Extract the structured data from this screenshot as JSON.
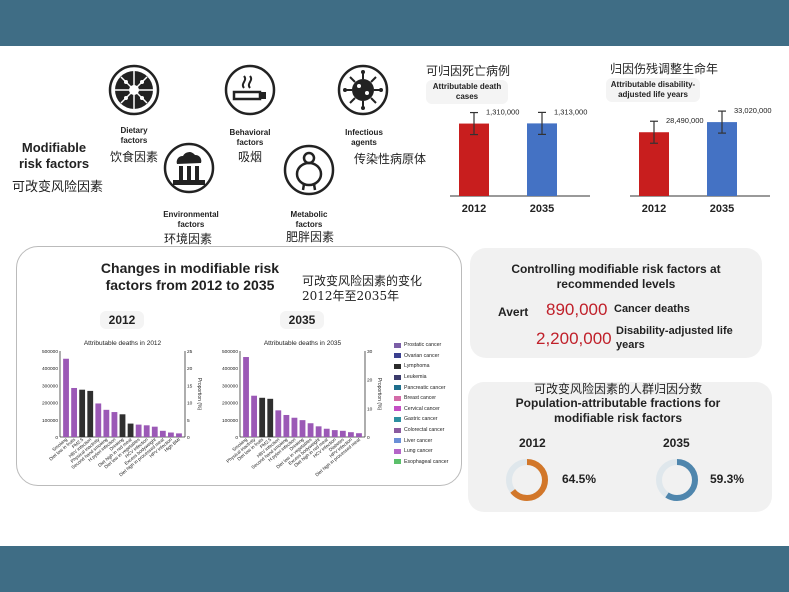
{
  "rf": {
    "title_en": "Modifiable risk factors",
    "title_cn": "可改变风险因素",
    "items": [
      {
        "icon": "dietary-icon",
        "label_en": "Dietary factors",
        "label_cn": "饮食因素"
      },
      {
        "icon": "smoking-icon",
        "label_en": "Behavioral factors",
        "label_cn": "吸烟"
      },
      {
        "icon": "virus-icon",
        "label_en": "Infectious agents",
        "label_cn": "传染性病原体"
      },
      {
        "icon": "factory-pollution-icon",
        "label_en": "Environmental factors",
        "label_cn": "环境因素"
      },
      {
        "icon": "obesity-icon",
        "label_en": "Metabolic factors",
        "label_cn": "肥胖因素"
      }
    ]
  },
  "kpi1": {
    "title_cn": "可归因死亡病例",
    "tag": "Attributable death cases"
  },
  "kpi2": {
    "title_cn": "归因伤残调整生命年",
    "tag": "Attributable disability-adjusted life years"
  },
  "changes": {
    "title": "Changes in modifiable risk factors from 2012 to 2035",
    "title_cn": "可改变风险因素的变化 2012年至2035年",
    "label_2012": "2012",
    "label_2035": "2035",
    "legend": [
      "Prostatic cancer",
      "Ovarian cancer",
      "Lymphoma",
      "Leukemia",
      "Pancreatic cancer",
      "Breast cancer",
      "Cervical cancer",
      "Gastric cancer",
      "Colorectal cancer",
      "Liver cancer",
      "Lung cancer",
      "Esophageal cancer"
    ]
  },
  "control": {
    "title": "Controlling modifiable risk factors at recommended levels",
    "avert_label": "Avert",
    "row1_value": "890,000",
    "row1_label": "Cancer deaths",
    "row2_value": "2,200,000",
    "row2_label": "Disability-adjusted life years"
  },
  "paf": {
    "title_cn": "可改变风险因素的人群归因分数",
    "title": "Population-attributable fractions for modifiable risk factors",
    "items": [
      {
        "year": "2012",
        "value": 64.5,
        "label": "64.5%",
        "color": "#d2772a"
      },
      {
        "year": "2035",
        "value": 59.3,
        "label": "59.3%",
        "color": "#4f86ad"
      }
    ]
  },
  "colors": {
    "band": "#3f6d85",
    "red": "#c81e1e",
    "blue": "#4472c4",
    "value_red": "#c0202a"
  },
  "chart_data": [
    {
      "type": "bar",
      "title": "",
      "categories": [
        "2012",
        "2035"
      ],
      "values": [
        1310000,
        1313000
      ],
      "value_labels": [
        "1,310,000",
        "1,313,000"
      ],
      "colors": [
        "#c81e1e",
        "#4472c4"
      ],
      "ylim": [
        0,
        1700000
      ]
    },
    {
      "type": "bar",
      "title": "",
      "categories": [
        "2012",
        "2035"
      ],
      "values": [
        28490000,
        33020000
      ],
      "value_labels": [
        "28,490,000",
        "33,020,000"
      ],
      "colors": [
        "#c81e1e",
        "#4472c4"
      ],
      "ylim": [
        0,
        42000000
      ]
    },
    {
      "type": "bar",
      "title": "Attributable deaths in 2012",
      "ylabel_right": "Proportion (%)",
      "ylim": [
        0,
        500000
      ],
      "yticks": [
        "0",
        "100000",
        "200000",
        "300000",
        "400000",
        "500000"
      ],
      "y2ticks": [
        "0",
        "5",
        "10",
        "15",
        "20",
        "25"
      ],
      "categories": [
        "Smoking",
        "Diet low in fruits",
        "PM2.5",
        "HBV infection",
        "Physical inactivity",
        "Second hand smoking",
        "H.pylori infection",
        "Drinking",
        "Diet high in red meat",
        "Diet low in vegetables",
        "HCV infection",
        "Excess bodyweight",
        "Diet high in processed meat",
        "HPV infection",
        "High BMI"
      ],
      "values": [
        455000,
        285000,
        275000,
        268000,
        195000,
        158000,
        145000,
        132000,
        78000,
        72000,
        68000,
        60000,
        36000,
        26000,
        21000
      ],
      "colors": [
        "#9b59b6",
        "#9b59b6",
        "#2f2f2f",
        "#2f2f2f",
        "#9b59b6",
        "#9b59b6",
        "#9b59b6",
        "#2f2f2f",
        "#2f2f2f",
        "#9b59b6",
        "#9b59b6",
        "#9b59b6",
        "#9b59b6",
        "#9b59b6",
        "#9b59b6"
      ]
    },
    {
      "type": "bar",
      "title": "Attributable deaths in 2035",
      "ylabel_right": "Proportion (%)",
      "ylim": [
        0,
        500000
      ],
      "yticks": [
        "0",
        "100000",
        "200000",
        "300000",
        "400000",
        "500000"
      ],
      "y2ticks": [
        "0",
        "10",
        "20",
        "30"
      ],
      "categories": [
        "Smoking",
        "Physical inactivity",
        "Diet low in fruits",
        "PM2.5",
        "HBV infection",
        "Second hand smoking",
        "H.pylori infection",
        "Drinking",
        "Diet low in vegetables",
        "Excess bodyweight",
        "Diet high in red meat",
        "HCV infection",
        "Diabetes",
        "HPV infection",
        "Diet high in processed meat"
      ],
      "values": [
        465000,
        240000,
        228000,
        222000,
        155000,
        128000,
        112000,
        98000,
        80000,
        62000,
        48000,
        40000,
        36000,
        28000,
        22000
      ],
      "colors": [
        "#9b59b6",
        "#9b59b6",
        "#2f2f2f",
        "#2f2f2f",
        "#9b59b6",
        "#9b59b6",
        "#9b59b6",
        "#9b59b6",
        "#9b59b6",
        "#9b59b6",
        "#9b59b6",
        "#9b59b6",
        "#9b59b6",
        "#9b59b6",
        "#9b59b6"
      ]
    }
  ]
}
